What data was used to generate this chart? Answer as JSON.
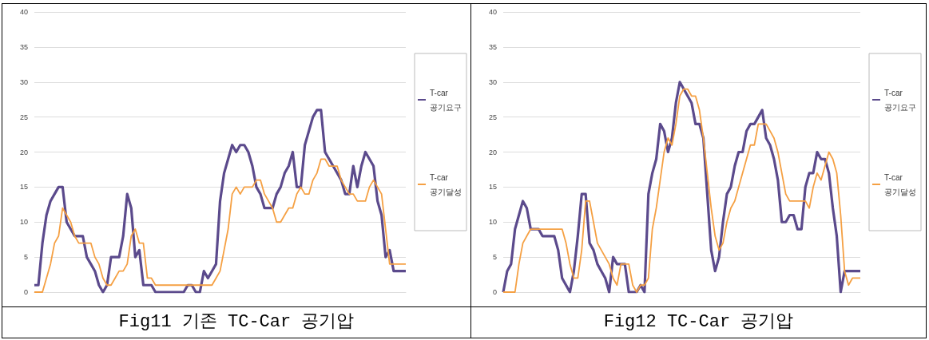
{
  "chart_data": [
    {
      "type": "line",
      "title": "Fig11 기존 TC-Car 공기압",
      "categories": [
        null,
        null,
        null,
        null,
        null,
        null,
        null,
        null,
        null,
        null,
        null,
        null,
        null,
        null,
        null,
        null,
        null,
        null,
        null,
        null,
        null,
        null,
        null,
        null,
        null,
        null,
        null,
        null,
        null,
        null,
        null,
        null,
        null,
        null,
        null,
        null,
        null,
        null,
        null,
        null,
        null,
        null,
        null,
        null,
        null,
        null,
        null,
        null,
        null,
        null,
        null,
        null,
        null,
        null,
        null,
        null,
        null,
        null,
        null,
        null,
        null,
        null,
        null,
        null,
        null,
        null,
        null,
        null,
        null,
        null,
        null,
        null,
        null,
        null,
        null,
        null,
        null,
        null,
        null,
        null,
        null,
        null,
        null,
        null,
        null,
        null,
        null,
        null,
        null,
        null,
        null,
        null,
        null
      ],
      "series": [
        {
          "name": "T-car 공기요구",
          "color": "#5b4a8c",
          "values": [
            1,
            1,
            7,
            11,
            13,
            14,
            15,
            15,
            10,
            9,
            8,
            8,
            8,
            5,
            4,
            3,
            1,
            0,
            1,
            5,
            5,
            5,
            8,
            14,
            12,
            5,
            6,
            1,
            1,
            1,
            0,
            0,
            0,
            0,
            0,
            0,
            0,
            0,
            1,
            1,
            0,
            0,
            3,
            2,
            3,
            4,
            13,
            17,
            19,
            21,
            20,
            21,
            21,
            20,
            18,
            15,
            14,
            12,
            12,
            12,
            14,
            15,
            17,
            18,
            20,
            15,
            15,
            21,
            23,
            25,
            26,
            26,
            20,
            19,
            18,
            17,
            16,
            14,
            14,
            18,
            15,
            18,
            20,
            19,
            18,
            13,
            11,
            5,
            6,
            3,
            3,
            3,
            3
          ]
        },
        {
          "name": "T-car 공기달성",
          "color": "#f5a043",
          "values": [
            0,
            0,
            0,
            2,
            4,
            7,
            8,
            12,
            11,
            10,
            8,
            7,
            7,
            7,
            7,
            5,
            4,
            2,
            1,
            1,
            2,
            3,
            3,
            4,
            8,
            9,
            7,
            7,
            2,
            2,
            1,
            1,
            1,
            1,
            1,
            1,
            1,
            1,
            1,
            1,
            1,
            1,
            1,
            1,
            1,
            2,
            3,
            6,
            9,
            14,
            15,
            14,
            15,
            15,
            15,
            16,
            16,
            14,
            13,
            12,
            10,
            10,
            11,
            12,
            12,
            14,
            15,
            14,
            14,
            16,
            17,
            19,
            19,
            18,
            18,
            18,
            16,
            15,
            14,
            14,
            13,
            13,
            13,
            15,
            16,
            15,
            14,
            9,
            4,
            4,
            4,
            4,
            4
          ]
        }
      ],
      "ylim": [
        0,
        40
      ],
      "yticks": [
        0,
        5,
        10,
        15,
        20,
        25,
        30,
        35,
        40
      ],
      "grid": "y",
      "legend": "right",
      "tick_labels": "y"
    },
    {
      "type": "line",
      "title": "Fig12 TC-Car 공기압",
      "categories": [
        null,
        null,
        null,
        null,
        null,
        null,
        null,
        null,
        null,
        null,
        null,
        null,
        null,
        null,
        null,
        null,
        null,
        null,
        null,
        null,
        null,
        null,
        null,
        null,
        null,
        null,
        null,
        null,
        null,
        null,
        null,
        null,
        null,
        null,
        null,
        null,
        null,
        null,
        null,
        null,
        null,
        null,
        null,
        null,
        null,
        null,
        null,
        null,
        null,
        null,
        null,
        null,
        null,
        null,
        null,
        null,
        null,
        null,
        null,
        null,
        null,
        null,
        null,
        null,
        null,
        null,
        null,
        null,
        null,
        null,
        null,
        null,
        null,
        null,
        null,
        null,
        null,
        null,
        null,
        null,
        null,
        null,
        null,
        null,
        null,
        null,
        null,
        null,
        null,
        null,
        null,
        null
      ],
      "series": [
        {
          "name": "T-car 공기요구",
          "color": "#5b4a8c",
          "values": [
            0,
            3,
            4,
            9,
            11,
            13,
            12,
            9,
            9,
            9,
            8,
            8,
            8,
            8,
            6,
            2,
            1,
            0,
            3,
            8,
            14,
            14,
            7,
            6,
            4,
            3,
            2,
            0,
            5,
            4,
            4,
            4,
            0,
            0,
            0,
            1,
            0,
            14,
            17,
            19,
            24,
            23,
            20,
            22,
            27,
            30,
            29,
            28,
            27,
            24,
            24,
            22,
            14,
            6,
            3,
            5,
            10,
            14,
            15,
            18,
            20,
            20,
            23,
            24,
            24,
            25,
            26,
            22,
            21,
            19,
            16,
            10,
            10,
            11,
            11,
            9,
            9,
            15,
            17,
            17,
            20,
            19,
            19,
            17,
            12,
            8,
            0,
            3,
            3,
            3,
            3,
            3
          ]
        },
        {
          "name": "T-car 공기달성",
          "color": "#f5a043",
          "values": [
            0,
            0,
            0,
            0,
            4,
            7,
            8,
            9,
            9,
            9,
            9,
            9,
            9,
            9,
            9,
            9,
            7,
            4,
            2,
            2,
            6,
            13,
            13,
            10,
            7,
            6,
            5,
            4,
            2,
            1,
            4,
            4,
            4,
            1,
            0,
            1,
            1,
            2,
            9,
            12,
            16,
            20,
            22,
            21,
            24,
            28,
            29,
            29,
            28,
            28,
            26,
            22,
            17,
            12,
            8,
            6,
            7,
            10,
            12,
            13,
            15,
            17,
            19,
            21,
            21,
            24,
            24,
            24,
            23,
            22,
            20,
            17,
            14,
            13,
            13,
            13,
            13,
            13,
            12,
            15,
            17,
            16,
            18,
            20,
            19,
            17,
            11,
            3,
            1,
            2,
            2,
            2
          ]
        }
      ],
      "ylim": [
        0,
        40
      ],
      "yticks": [
        0,
        5,
        10,
        15,
        20,
        25,
        30,
        35,
        40
      ],
      "grid": "y",
      "legend": "right",
      "tick_labels": "y"
    }
  ]
}
